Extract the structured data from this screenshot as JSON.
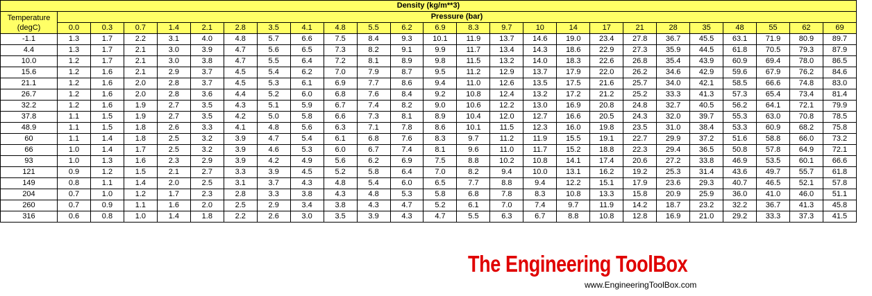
{
  "title": "Density (kg/m**3)",
  "pressure_header": "Pressure (bar)",
  "temperature_header": [
    "Temperature",
    "(degC)"
  ],
  "pressures": [
    "0.0",
    "0.3",
    "0.7",
    "1.4",
    "2.1",
    "2.8",
    "3.5",
    "4.1",
    "4.8",
    "5.5",
    "6.2",
    "6.9",
    "8.3",
    "9.7",
    "10",
    "14",
    "17",
    "21",
    "28",
    "35",
    "48",
    "55",
    "62",
    "69"
  ],
  "rows": [
    {
      "temp": "-1.1",
      "values": [
        "1.3",
        "1.7",
        "2.2",
        "3.1",
        "4.0",
        "4.8",
        "5.7",
        "6.6",
        "7.5",
        "8.4",
        "9.3",
        "10.1",
        "11.9",
        "13.7",
        "14.6",
        "19.0",
        "23.4",
        "27.8",
        "36.7",
        "45.5",
        "63.1",
        "71.9",
        "80.9",
        "89.7"
      ]
    },
    {
      "temp": "4.4",
      "values": [
        "1.3",
        "1.7",
        "2.1",
        "3.0",
        "3.9",
        "4.7",
        "5.6",
        "6.5",
        "7.3",
        "8.2",
        "9.1",
        "9.9",
        "11.7",
        "13.4",
        "14.3",
        "18.6",
        "22.9",
        "27.3",
        "35.9",
        "44.5",
        "61.8",
        "70.5",
        "79.3",
        "87.9"
      ]
    },
    {
      "temp": "10.0",
      "values": [
        "1.2",
        "1.7",
        "2.1",
        "3.0",
        "3.8",
        "4.7",
        "5.5",
        "6.4",
        "7.2",
        "8.1",
        "8.9",
        "9.8",
        "11.5",
        "13.2",
        "14.0",
        "18.3",
        "22.6",
        "26.8",
        "35.4",
        "43.9",
        "60.9",
        "69.4",
        "78.0",
        "86.5"
      ]
    },
    {
      "temp": "15.6",
      "values": [
        "1.2",
        "1.6",
        "2.1",
        "2.9",
        "3.7",
        "4.5",
        "5.4",
        "6.2",
        "7.0",
        "7.9",
        "8.7",
        "9.5",
        "11.2",
        "12.9",
        "13.7",
        "17.9",
        "22.0",
        "26.2",
        "34.6",
        "42.9",
        "59.6",
        "67.9",
        "76.2",
        "84.6"
      ]
    },
    {
      "temp": "21.1",
      "values": [
        "1.2",
        "1.6",
        "2.0",
        "2.8",
        "3.7",
        "4.5",
        "5.3",
        "6.1",
        "6.9",
        "7.7",
        "8.6",
        "9.4",
        "11.0",
        "12.6",
        "13.5",
        "17.5",
        "21.6",
        "25.7",
        "34.0",
        "42.1",
        "58.5",
        "66.6",
        "74.8",
        "83.0"
      ]
    },
    {
      "temp": "26.7",
      "values": [
        "1.2",
        "1.6",
        "2.0",
        "2.8",
        "3.6",
        "4.4",
        "5.2",
        "6.0",
        "6.8",
        "7.6",
        "8.4",
        "9.2",
        "10.8",
        "12.4",
        "13.2",
        "17.2",
        "21.2",
        "25.2",
        "33.3",
        "41.3",
        "57.3",
        "65.4",
        "73.4",
        "81.4"
      ]
    },
    {
      "temp": "32.2",
      "values": [
        "1.2",
        "1.6",
        "1.9",
        "2.7",
        "3.5",
        "4.3",
        "5.1",
        "5.9",
        "6.7",
        "7.4",
        "8.2",
        "9.0",
        "10.6",
        "12.2",
        "13.0",
        "16.9",
        "20.8",
        "24.8",
        "32.7",
        "40.5",
        "56.2",
        "64.1",
        "72.1",
        "79.9"
      ]
    },
    {
      "temp": "37.8",
      "values": [
        "1.1",
        "1.5",
        "1.9",
        "2.7",
        "3.5",
        "4.2",
        "5.0",
        "5.8",
        "6.6",
        "7.3",
        "8.1",
        "8.9",
        "10.4",
        "12.0",
        "12.7",
        "16.6",
        "20.5",
        "24.3",
        "32.0",
        "39.7",
        "55.3",
        "63.0",
        "70.8",
        "78.5"
      ]
    },
    {
      "temp": "48.9",
      "values": [
        "1.1",
        "1.5",
        "1.8",
        "2.6",
        "3.3",
        "4.1",
        "4.8",
        "5.6",
        "6.3",
        "7.1",
        "7.8",
        "8.6",
        "10.1",
        "11.5",
        "12.3",
        "16.0",
        "19.8",
        "23.5",
        "31.0",
        "38.4",
        "53.3",
        "60.9",
        "68.2",
        "75.8"
      ]
    },
    {
      "temp": "60",
      "values": [
        "1.1",
        "1.4",
        "1.8",
        "2.5",
        "3.2",
        "3.9",
        "4.7",
        "5.4",
        "6.1",
        "6.8",
        "7.6",
        "8.3",
        "9.7",
        "11.2",
        "11.9",
        "15.5",
        "19.1",
        "22.7",
        "29.9",
        "37.2",
        "51.6",
        "58.8",
        "66.0",
        "73.2"
      ]
    },
    {
      "temp": "66",
      "values": [
        "1.0",
        "1.4",
        "1.7",
        "2.5",
        "3.2",
        "3.9",
        "4.6",
        "5.3",
        "6.0",
        "6.7",
        "7.4",
        "8.1",
        "9.6",
        "11.0",
        "11.7",
        "15.2",
        "18.8",
        "22.3",
        "29.4",
        "36.5",
        "50.8",
        "57.8",
        "64.9",
        "72.1"
      ]
    },
    {
      "temp": "93",
      "values": [
        "1.0",
        "1.3",
        "1.6",
        "2.3",
        "2.9",
        "3.9",
        "4.2",
        "4.9",
        "5.6",
        "6.2",
        "6.9",
        "7.5",
        "8.8",
        "10.2",
        "10.8",
        "14.1",
        "17.4",
        "20.6",
        "27.2",
        "33.8",
        "46.9",
        "53.5",
        "60.1",
        "66.6"
      ]
    },
    {
      "temp": "121",
      "values": [
        "0.9",
        "1.2",
        "1.5",
        "2.1",
        "2.7",
        "3.3",
        "3.9",
        "4.5",
        "5.2",
        "5.8",
        "6.4",
        "7.0",
        "8.2",
        "9.4",
        "10.0",
        "13.1",
        "16.2",
        "19.2",
        "25.3",
        "31.4",
        "43.6",
        "49.7",
        "55.7",
        "61.8"
      ]
    },
    {
      "temp": "149",
      "values": [
        "0.8",
        "1.1",
        "1.4",
        "2.0",
        "2.5",
        "3.1",
        "3.7",
        "4.3",
        "4.8",
        "5.4",
        "6.0",
        "6.5",
        "7.7",
        "8.8",
        "9.4",
        "12.2",
        "15.1",
        "17.9",
        "23.6",
        "29.3",
        "40.7",
        "46.5",
        "52.1",
        "57.8"
      ]
    },
    {
      "temp": "204",
      "values": [
        "0.7",
        "1.0",
        "1.2",
        "1.7",
        "2.3",
        "2.8",
        "3.3",
        "3.8",
        "4.3",
        "4.8",
        "5.3",
        "5.8",
        "6.8",
        "7.8",
        "8.3",
        "10.8",
        "13.3",
        "15.8",
        "20.9",
        "25.9",
        "36.0",
        "41.0",
        "46.0",
        "51.1"
      ]
    },
    {
      "temp": "260",
      "values": [
        "0.7",
        "0.9",
        "1.1",
        "1.6",
        "2.0",
        "2.5",
        "2.9",
        "3.4",
        "3.8",
        "4.3",
        "4.7",
        "5.2",
        "6.1",
        "7.0",
        "7.4",
        "9.7",
        "11.9",
        "14.2",
        "18.7",
        "23.2",
        "32.2",
        "36.7",
        "41.3",
        "45.8"
      ]
    },
    {
      "temp": "316",
      "values": [
        "0.6",
        "0.8",
        "1.0",
        "1.4",
        "1.8",
        "2.2",
        "2.6",
        "3.0",
        "3.5",
        "3.9",
        "4.3",
        "4.7",
        "5.5",
        "6.3",
        "6.7",
        "8.8",
        "10.8",
        "12.8",
        "16.9",
        "21.0",
        "29.2",
        "33.3",
        "37.3",
        "41.5"
      ]
    }
  ],
  "branding": {
    "logo_text": "The Engineering ToolBox",
    "url": "www.EngineeringToolBox.com",
    "logo_color": "#e00000",
    "header_color": "#ffff66"
  }
}
